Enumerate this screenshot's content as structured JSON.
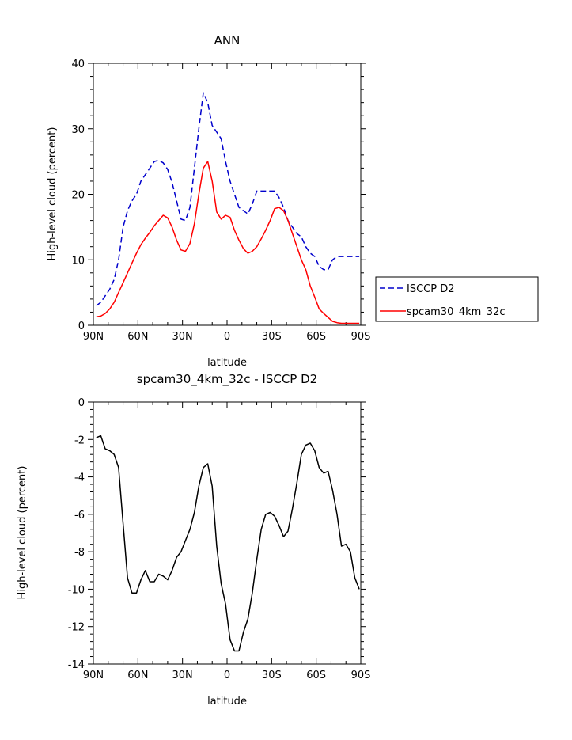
{
  "chart_data": [
    {
      "type": "line",
      "title": "ANN",
      "xlabel": "latitude",
      "ylabel": "High-level cloud (percent)",
      "xlim": [
        -90,
        90
      ],
      "ylim": [
        0,
        40
      ],
      "x_ticks": [
        -90,
        -60,
        -30,
        0,
        30,
        60,
        90
      ],
      "x_tick_labels": [
        "90N",
        "60N",
        "30N",
        "0",
        "30S",
        "60S",
        "90S"
      ],
      "y_ticks": [
        0,
        10,
        20,
        30,
        40
      ],
      "y_tick_labels": [
        "0",
        "10",
        "20",
        "30",
        "40"
      ],
      "legend_position": "right",
      "series": [
        {
          "name": "ISCCP D2",
          "color": "#0000cc",
          "dash": "dashed",
          "x": [
            -88,
            -85,
            -82,
            -79,
            -76,
            -73,
            -70,
            -67,
            -64,
            -61,
            -58,
            -55,
            -52,
            -49,
            -46,
            -43,
            -40,
            -37,
            -34,
            -31,
            -28,
            -25,
            -22,
            -19,
            -16,
            -13,
            -10,
            -7,
            -4,
            -1,
            2,
            5,
            8,
            11,
            14,
            17,
            20,
            23,
            26,
            29,
            32,
            35,
            38,
            41,
            44,
            47,
            50,
            53,
            56,
            59,
            62,
            65,
            68,
            71,
            74,
            77,
            80,
            83,
            86,
            89
          ],
          "y": [
            3,
            3.5,
            4.5,
            5.5,
            7,
            10,
            15,
            17.5,
            19,
            20,
            22,
            23,
            24,
            25,
            25.2,
            24.8,
            23.8,
            21.8,
            19,
            16.2,
            16,
            18,
            24,
            30,
            35.5,
            34,
            30.5,
            29.5,
            28.5,
            25,
            22,
            20,
            18,
            17.5,
            17,
            18.5,
            20.5,
            20.5,
            20.5,
            20.5,
            20.5,
            19.5,
            18,
            16,
            15,
            14,
            13.5,
            12,
            11,
            10.5,
            9,
            8.5,
            8.5,
            10,
            10.5,
            10.5,
            10.5,
            10.5,
            10.5,
            10.5
          ]
        },
        {
          "name": "spcam30_4km_32c",
          "color": "#ff0000",
          "dash": "solid",
          "x": [
            -88,
            -85,
            -82,
            -79,
            -76,
            -73,
            -70,
            -67,
            -64,
            -61,
            -58,
            -55,
            -52,
            -49,
            -46,
            -43,
            -40,
            -37,
            -34,
            -31,
            -28,
            -25,
            -22,
            -19,
            -16,
            -13,
            -10,
            -7,
            -4,
            -1,
            2,
            5,
            8,
            11,
            14,
            17,
            20,
            23,
            26,
            29,
            32,
            35,
            38,
            41,
            44,
            47,
            50,
            53,
            56,
            59,
            62,
            65,
            68,
            71,
            74,
            77,
            80,
            83,
            86,
            89
          ],
          "y": [
            1.3,
            1.4,
            1.8,
            2.5,
            3.5,
            5,
            6.5,
            8,
            9.5,
            11,
            12.3,
            13.3,
            14.2,
            15.2,
            16,
            16.8,
            16.4,
            15,
            13,
            11.5,
            11.3,
            12.5,
            15.5,
            20,
            24,
            25,
            22,
            17.3,
            16.2,
            16.8,
            16.5,
            14.5,
            13,
            11.7,
            11,
            11.3,
            12,
            13.2,
            14.5,
            16,
            17.8,
            18,
            17.5,
            16,
            14,
            12,
            10,
            8.5,
            6,
            4.3,
            2.5,
            1.8,
            1.2,
            0.6,
            0.4,
            0.3,
            0.3,
            0.3,
            0.3,
            0.3
          ]
        }
      ]
    },
    {
      "type": "line",
      "title": "spcam30_4km_32c - ISCCP D2",
      "xlabel": "latitude",
      "ylabel": "High-level cloud (percent)",
      "xlim": [
        -90,
        90
      ],
      "ylim": [
        -14,
        0
      ],
      "x_ticks": [
        -90,
        -60,
        -30,
        0,
        30,
        60,
        90
      ],
      "x_tick_labels": [
        "90N",
        "60N",
        "30N",
        "0",
        "30S",
        "60S",
        "90S"
      ],
      "y_ticks": [
        -14,
        -12,
        -10,
        -8,
        -6,
        -4,
        -2,
        0
      ],
      "y_tick_labels": [
        "-14",
        "-12",
        "-10",
        "-8",
        "-6",
        "-4",
        "-2",
        "0"
      ],
      "series": [
        {
          "color": "#000000",
          "dash": "solid",
          "x": [
            -88,
            -85,
            -82,
            -79,
            -76,
            -73,
            -70,
            -67,
            -64,
            -61,
            -58,
            -55,
            -52,
            -49,
            -46,
            -43,
            -40,
            -37,
            -34,
            -31,
            -28,
            -25,
            -22,
            -19,
            -16,
            -13,
            -10,
            -7,
            -4,
            -1,
            2,
            5,
            8,
            11,
            14,
            17,
            20,
            23,
            26,
            29,
            32,
            35,
            38,
            41,
            44,
            47,
            50,
            53,
            56,
            59,
            62,
            65,
            68,
            71,
            74,
            77,
            80,
            83,
            86,
            89
          ],
          "y": [
            -1.9,
            -1.8,
            -2.5,
            -2.6,
            -2.8,
            -3.5,
            -6.5,
            -9.4,
            -10.2,
            -10.2,
            -9.5,
            -9,
            -9.6,
            -9.6,
            -9.2,
            -9.3,
            -9.5,
            -9,
            -8.3,
            -8,
            -7.4,
            -6.8,
            -5.9,
            -4.5,
            -3.5,
            -3.3,
            -4.5,
            -7.7,
            -9.7,
            -10.8,
            -12.7,
            -13.3,
            -13.3,
            -12.3,
            -11.6,
            -10.2,
            -8.4,
            -6.8,
            -6,
            -5.9,
            -6.1,
            -6.6,
            -7.2,
            -6.9,
            -5.7,
            -4.3,
            -2.8,
            -2.3,
            -2.2,
            -2.6,
            -3.5,
            -3.8,
            -3.7,
            -4.7,
            -6,
            -7.7,
            -7.6,
            -8,
            -9.4,
            -10
          ]
        }
      ]
    }
  ]
}
